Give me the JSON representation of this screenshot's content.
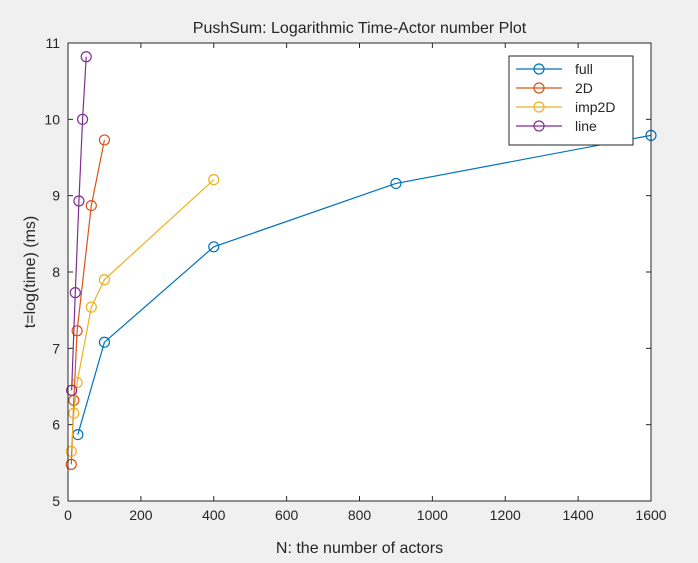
{
  "chart_data": {
    "type": "line",
    "title": "PushSum: Logarithmic Time-Actor number Plot",
    "xlabel": "N: the number of actors",
    "ylabel": "t=log(time) (ms)",
    "xlim": [
      0,
      1600
    ],
    "ylim": [
      5,
      11
    ],
    "xticks": [
      0,
      200,
      400,
      600,
      800,
      1000,
      1200,
      1400,
      1600
    ],
    "yticks": [
      5,
      6,
      7,
      8,
      9,
      10,
      11
    ],
    "grid": false,
    "legend_position": "top-right",
    "series": [
      {
        "name": "full",
        "color": "#0072bd",
        "marker": "circle",
        "x": [
          27,
          100,
          400,
          900,
          1600
        ],
        "y": [
          5.87,
          7.08,
          8.33,
          9.16,
          9.79
        ]
      },
      {
        "name": "2D",
        "color": "#d95319",
        "marker": "circle",
        "x": [
          9,
          16,
          25,
          64,
          100
        ],
        "y": [
          5.48,
          6.32,
          7.23,
          8.87,
          9.73
        ]
      },
      {
        "name": "imp2D",
        "color": "#edb120",
        "marker": "circle",
        "x": [
          9,
          16,
          25,
          64,
          100,
          400
        ],
        "y": [
          5.65,
          6.15,
          6.55,
          7.54,
          7.9,
          9.21
        ]
      },
      {
        "name": "line",
        "color": "#7e2f8e",
        "marker": "circle",
        "x": [
          10,
          20,
          30,
          40,
          50
        ],
        "y": [
          6.45,
          7.73,
          8.93,
          10.0,
          10.82
        ]
      }
    ]
  }
}
